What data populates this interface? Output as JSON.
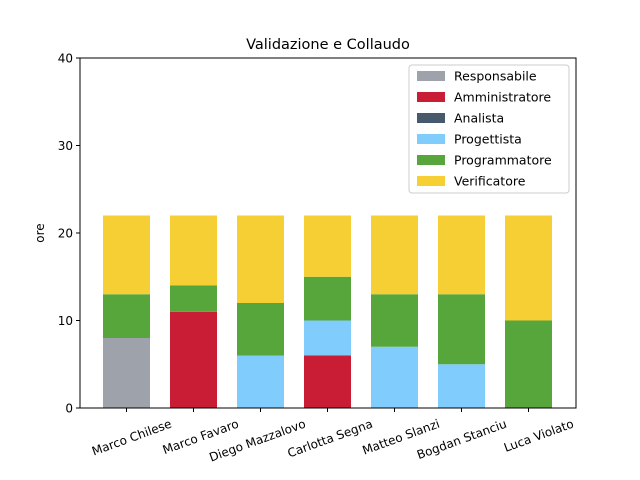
{
  "chart_data": {
    "type": "bar",
    "stacked": true,
    "title": "Validazione e Collaudo",
    "xlabel": "",
    "ylabel": "ore",
    "ylim": [
      0,
      40
    ],
    "yticks": [
      0,
      10,
      20,
      30,
      40
    ],
    "grid": false,
    "legend_position": "top-right",
    "categories": [
      "Marco Chilese",
      "Marco Favaro",
      "Diego Mazzalovo",
      "Carlotta Segna",
      "Matteo Slanzi",
      "Bogdan Stanciu",
      "Luca Violato"
    ],
    "series": [
      {
        "name": "Responsabile",
        "color": "#9ea3ab",
        "values": [
          8,
          0,
          0,
          0,
          0,
          0,
          0
        ]
      },
      {
        "name": "Amministratore",
        "color": "#c81d35",
        "values": [
          0,
          11,
          0,
          6,
          0,
          0,
          0
        ]
      },
      {
        "name": "Analista",
        "color": "#475a6b",
        "values": [
          0,
          0,
          0,
          0,
          0,
          0,
          0
        ]
      },
      {
        "name": "Progettista",
        "color": "#80ccfd",
        "values": [
          0,
          0,
          6,
          4,
          7,
          5,
          0
        ]
      },
      {
        "name": "Programmatore",
        "color": "#57a63b",
        "values": [
          5,
          3,
          6,
          5,
          6,
          8,
          10
        ]
      },
      {
        "name": "Verificatore",
        "color": "#f5cf34",
        "values": [
          9,
          8,
          10,
          7,
          9,
          9,
          12
        ]
      }
    ]
  }
}
